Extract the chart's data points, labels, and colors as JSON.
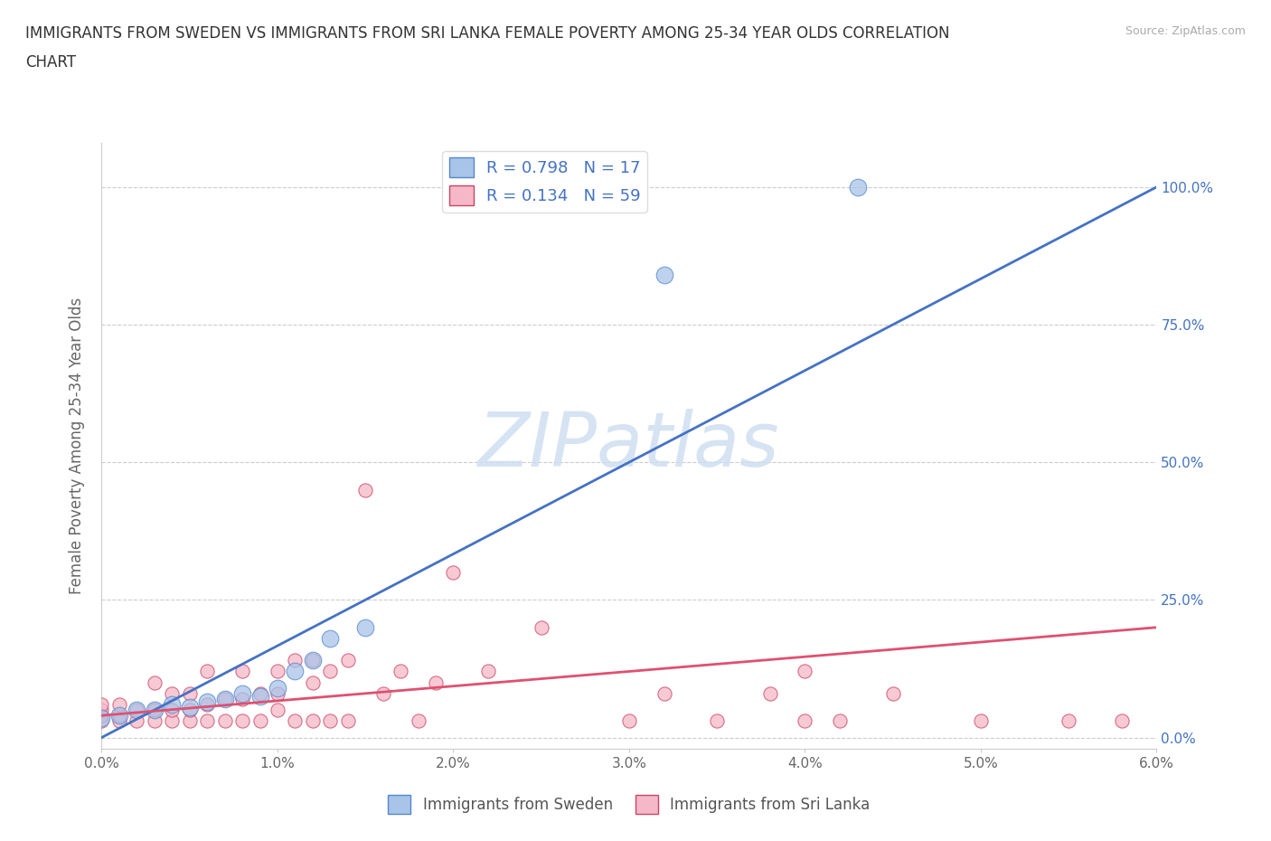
{
  "title_line1": "IMMIGRANTS FROM SWEDEN VS IMMIGRANTS FROM SRI LANKA FEMALE POVERTY AMONG 25-34 YEAR OLDS CORRELATION",
  "title_line2": "CHART",
  "source": "Source: ZipAtlas.com",
  "ylabel": "Female Poverty Among 25-34 Year Olds",
  "xlim": [
    0.0,
    0.06
  ],
  "ylim": [
    -0.02,
    1.08
  ],
  "xticks": [
    0.0,
    0.01,
    0.02,
    0.03,
    0.04,
    0.05,
    0.06
  ],
  "xticklabels": [
    "0.0%",
    "1.0%",
    "2.0%",
    "3.0%",
    "4.0%",
    "5.0%",
    "6.0%"
  ],
  "yticks": [
    0.0,
    0.25,
    0.5,
    0.75,
    1.0
  ],
  "yticklabels_right": [
    "0.0%",
    "25.0%",
    "50.0%",
    "75.0%",
    "100.0%"
  ],
  "grid_color": "#cccccc",
  "background_color": "#ffffff",
  "watermark_text": "ZIPatlas",
  "watermark_color": "#ccddf0",
  "sweden_fill": "#a8c4e8",
  "sweden_edge": "#5588cc",
  "srilanka_fill": "#f5b8c8",
  "srilanka_edge": "#cc4466",
  "sweden_line_color": "#4472c4",
  "srilanka_line_color": "#e05070",
  "legend_R_sweden": "0.798",
  "legend_N_sweden": "17",
  "legend_R_srilanka": "0.134",
  "legend_N_srilanka": "59",
  "sweden_x": [
    0.0,
    0.001,
    0.002,
    0.003,
    0.004,
    0.005,
    0.006,
    0.007,
    0.008,
    0.009,
    0.01,
    0.011,
    0.012,
    0.013,
    0.015,
    0.032,
    0.043
  ],
  "sweden_y": [
    0.035,
    0.04,
    0.05,
    0.05,
    0.06,
    0.055,
    0.065,
    0.07,
    0.08,
    0.075,
    0.09,
    0.12,
    0.14,
    0.18,
    0.2,
    0.84,
    1.0
  ],
  "srilanka_x": [
    0.0,
    0.0,
    0.0,
    0.0,
    0.001,
    0.001,
    0.001,
    0.002,
    0.002,
    0.003,
    0.003,
    0.003,
    0.004,
    0.004,
    0.004,
    0.005,
    0.005,
    0.005,
    0.006,
    0.006,
    0.006,
    0.007,
    0.007,
    0.008,
    0.008,
    0.008,
    0.009,
    0.009,
    0.01,
    0.01,
    0.01,
    0.011,
    0.011,
    0.012,
    0.012,
    0.012,
    0.013,
    0.013,
    0.014,
    0.014,
    0.015,
    0.016,
    0.017,
    0.018,
    0.019,
    0.02,
    0.022,
    0.025,
    0.03,
    0.032,
    0.035,
    0.038,
    0.04,
    0.042,
    0.045,
    0.05,
    0.055,
    0.058,
    0.04
  ],
  "srilanka_y": [
    0.03,
    0.04,
    0.05,
    0.06,
    0.03,
    0.04,
    0.06,
    0.03,
    0.05,
    0.03,
    0.05,
    0.1,
    0.03,
    0.05,
    0.08,
    0.03,
    0.05,
    0.08,
    0.03,
    0.06,
    0.12,
    0.03,
    0.07,
    0.03,
    0.07,
    0.12,
    0.03,
    0.08,
    0.05,
    0.08,
    0.12,
    0.03,
    0.14,
    0.03,
    0.1,
    0.14,
    0.03,
    0.12,
    0.03,
    0.14,
    0.45,
    0.08,
    0.12,
    0.03,
    0.1,
    0.3,
    0.12,
    0.2,
    0.03,
    0.08,
    0.03,
    0.08,
    0.03,
    0.03,
    0.08,
    0.03,
    0.03,
    0.03,
    0.12
  ],
  "sweden_line_x": [
    0.0,
    0.06
  ],
  "sweden_line_y": [
    0.0,
    1.0
  ],
  "srilanka_line_x": [
    0.0,
    0.06
  ],
  "srilanka_line_y": [
    0.04,
    0.2
  ]
}
